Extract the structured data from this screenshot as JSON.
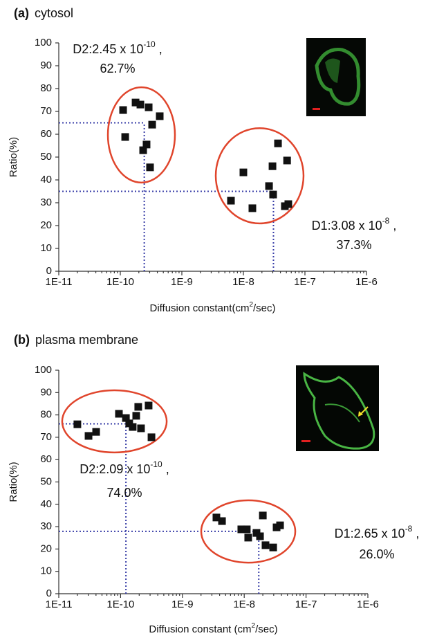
{
  "chart_data": [
    {
      "type": "scatter",
      "panel": "(a)",
      "title": "cytosol",
      "x_scale": "log",
      "y_label": "Ratio(%)",
      "x_label_parts": [
        "Diffusion constant(cm",
        "2",
        "/sec)"
      ],
      "xlim": [
        1e-11,
        1e-06
      ],
      "ylim": [
        0,
        100
      ],
      "xticks": [
        {
          "value": 1e-11,
          "label": "1E-11"
        },
        {
          "value": 1e-10,
          "label": "1E-10"
        },
        {
          "value": 1e-09,
          "label": "1E-9"
        },
        {
          "value": 1e-08,
          "label": "1E-8"
        },
        {
          "value": 1e-07,
          "label": "1E-7"
        },
        {
          "value": 1e-06,
          "label": "1E-6"
        }
      ],
      "yticks": [
        0,
        10,
        20,
        30,
        40,
        50,
        60,
        70,
        80,
        90,
        100
      ],
      "point_color": "#111111",
      "ellipse_color": "#e0452c",
      "guide_color": "#3a3fa8",
      "clusters": [
        {
          "x": [
            1.11e-10,
            1.77e-10,
            2.12e-10,
            2.89e-10,
            4.37e-10,
            3.29e-10,
            1.2e-10,
            2.67e-10,
            2.35e-10,
            3.04e-10
          ],
          "y": [
            70.6,
            73.9,
            73,
            71.8,
            67.9,
            64.2,
            58.8,
            55.5,
            53,
            45.5
          ],
          "label_base": "D2:2.45 x 10",
          "label_exp": "-10",
          "label_tail": " ,",
          "label_pct": "62.7%",
          "guide": {
            "x": 2.45e-10,
            "y": 65
          }
        },
        {
          "x": [
            3.65e-08,
            5.13e-08,
            1e-08,
            2.97e-08,
            2.61e-08,
            3.04e-08,
            6.28e-09,
            1.4e-08,
            5.37e-08,
            4.72e-08
          ],
          "y": [
            56,
            48.5,
            43.3,
            46,
            37.3,
            33.6,
            30.9,
            27.6,
            29.4,
            28.5
          ],
          "label_base": "D1:3.08 x 10",
          "label_exp": "-8",
          "label_tail": " ,",
          "label_pct": "37.3%",
          "guide": {
            "x": 3.08e-08,
            "y": 35
          }
        }
      ]
    },
    {
      "type": "scatter",
      "panel": "(b)",
      "title": "plasma membrane",
      "x_scale": "log",
      "y_label": "Ratio(%)",
      "x_label_parts": [
        "Diffusion constant (cm",
        "2",
        "/sec)"
      ],
      "xlim": [
        1e-11,
        1e-06
      ],
      "ylim": [
        0,
        100
      ],
      "xticks": [
        {
          "value": 1e-11,
          "label": "1E-11"
        },
        {
          "value": 1e-10,
          "label": "1E-10"
        },
        {
          "value": 1e-09,
          "label": "1E-9"
        },
        {
          "value": 1e-08,
          "label": "1E-8"
        },
        {
          "value": 1e-07,
          "label": "1E-7"
        },
        {
          "value": 1e-06,
          "label": "1E-6"
        }
      ],
      "yticks": [
        0,
        10,
        20,
        30,
        40,
        50,
        60,
        70,
        80,
        90,
        100
      ],
      "point_color": "#111111",
      "ellipse_color": "#e0452c",
      "guide_color": "#3a3fa8",
      "clusters": [
        {
          "x": [
            2e-11,
            3.03e-11,
            4.02e-11,
            9.4e-11,
            1.22e-10,
            1.38e-10,
            1.57e-10,
            1.79e-10,
            1.93e-10,
            2.84e-10,
            2.14e-10,
            3.16e-10
          ],
          "y": [
            75.8,
            70.6,
            72.4,
            80.5,
            78.6,
            76.2,
            74.6,
            79.6,
            83.6,
            84.2,
            74,
            70
          ],
          "label_base": "D2:2.09 x 10",
          "label_exp": "-10",
          "label_tail": " ,",
          "label_pct": "74.0%",
          "guide": {
            "x": 1.22e-10,
            "y": 76
          }
        },
        {
          "x": [
            3.55e-09,
            4.37e-09,
            8.97e-09,
            1.1e-08,
            1.16e-08,
            1.58e-08,
            1.8e-08,
            2e-08,
            2.21e-08,
            2.94e-08,
            3.34e-08,
            3.8e-08
          ],
          "y": [
            34.1,
            32.5,
            28.8,
            28.8,
            25.1,
            27.2,
            25.7,
            35,
            21.7,
            20.7,
            29.7,
            30.6
          ],
          "label_base": "D1:2.65 x 10",
          "label_exp": "-8",
          "label_tail": " ,",
          "label_pct": "26.0%",
          "guide": {
            "x": 1.72e-08,
            "y": 27.9
          }
        }
      ]
    }
  ]
}
